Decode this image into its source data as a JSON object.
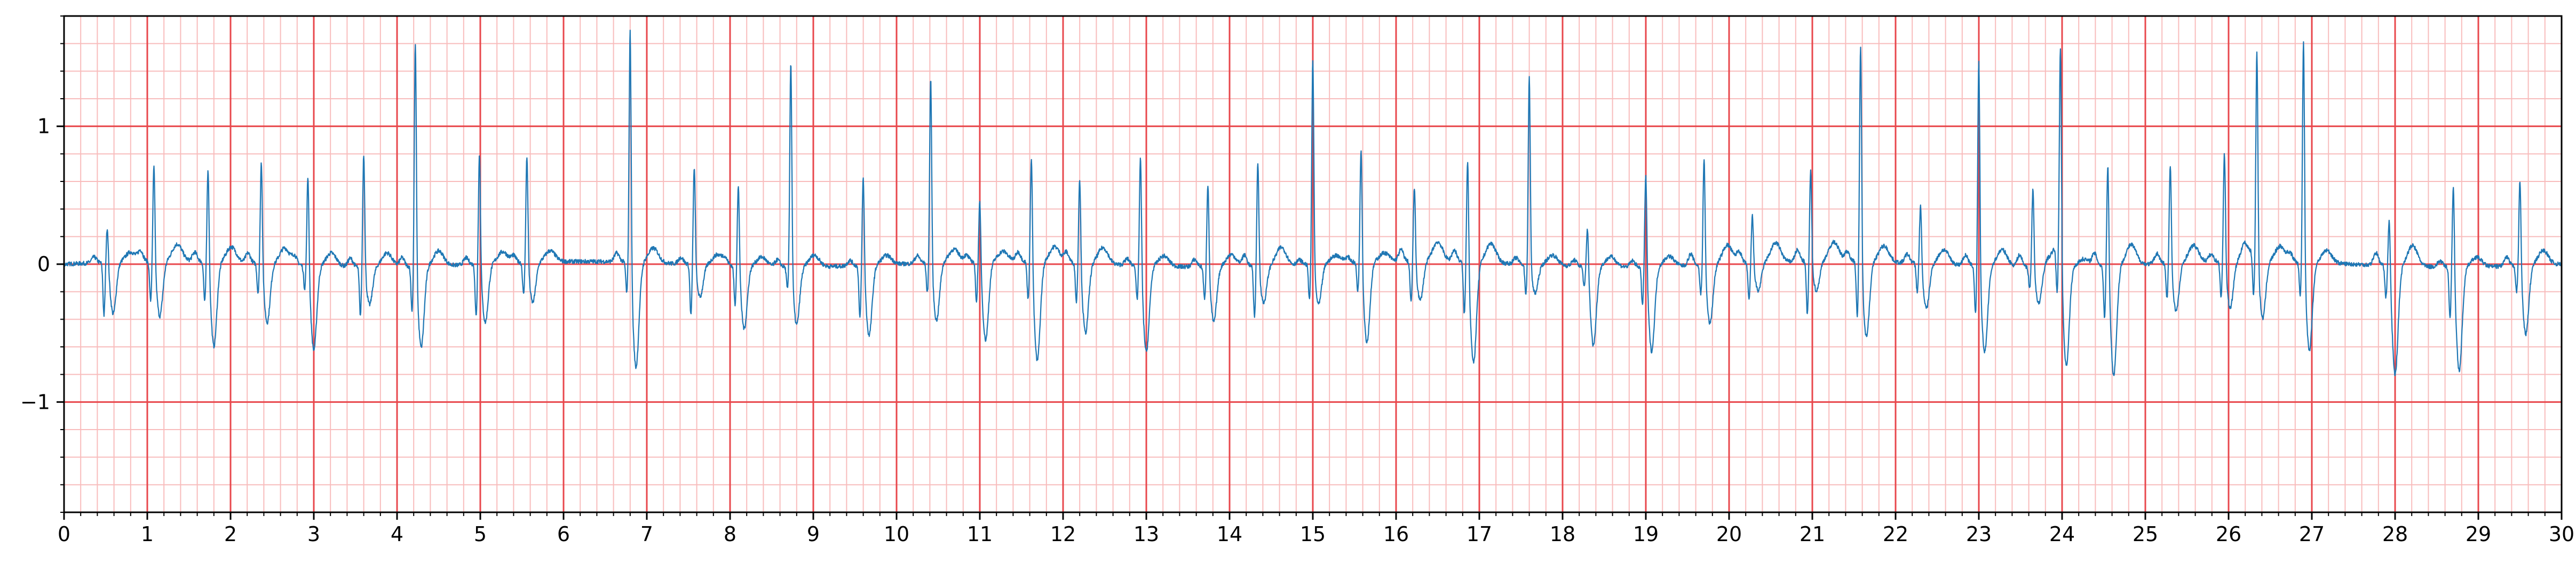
{
  "chart_data": {
    "type": "line",
    "title": "",
    "xlabel": "",
    "ylabel": "",
    "xlim": [
      0,
      30
    ],
    "ylim": [
      -1.8,
      1.8
    ],
    "grid": "on",
    "x_major_ticks": [
      0,
      1,
      2,
      3,
      4,
      5,
      6,
      7,
      8,
      9,
      10,
      11,
      12,
      13,
      14,
      15,
      16,
      17,
      18,
      19,
      20,
      21,
      22,
      23,
      24,
      25,
      26,
      27,
      28,
      29,
      30
    ],
    "x_tick_labels": [
      "0",
      "1",
      "2",
      "3",
      "4",
      "5",
      "6",
      "7",
      "8",
      "9",
      "10",
      "11",
      "12",
      "13",
      "14",
      "15",
      "16",
      "17",
      "18",
      "19",
      "20",
      "21",
      "22",
      "23",
      "24",
      "25",
      "26",
      "27",
      "28",
      "29",
      "30"
    ],
    "y_major_ticks": [
      -1,
      0,
      1
    ],
    "y_tick_labels": [
      "−1",
      "0",
      "1"
    ],
    "x_minor_step": 0.2,
    "y_minor_step": 0.2,
    "colors": {
      "trace": "#1f77b4",
      "major_grid": "#e8474c",
      "minor_grid": "#f8bcbc",
      "axes": "#000000"
    },
    "series": [
      {
        "beat_times": [
          0.52,
          1.08,
          1.73,
          2.37,
          2.93,
          3.6,
          4.22,
          4.99,
          5.56,
          6.8,
          7.57,
          8.1,
          8.73,
          9.6,
          10.41,
          11.0,
          11.62,
          12.2,
          12.93,
          13.74,
          14.34,
          15.0,
          15.58,
          16.22,
          16.86,
          17.6,
          18.3,
          19.0,
          19.7,
          20.28,
          20.98,
          21.58,
          22.3,
          23.0,
          23.65,
          23.98,
          24.55,
          25.3,
          25.95,
          26.34,
          26.9,
          27.93,
          28.7,
          29.5
        ]
      }
    ]
  }
}
